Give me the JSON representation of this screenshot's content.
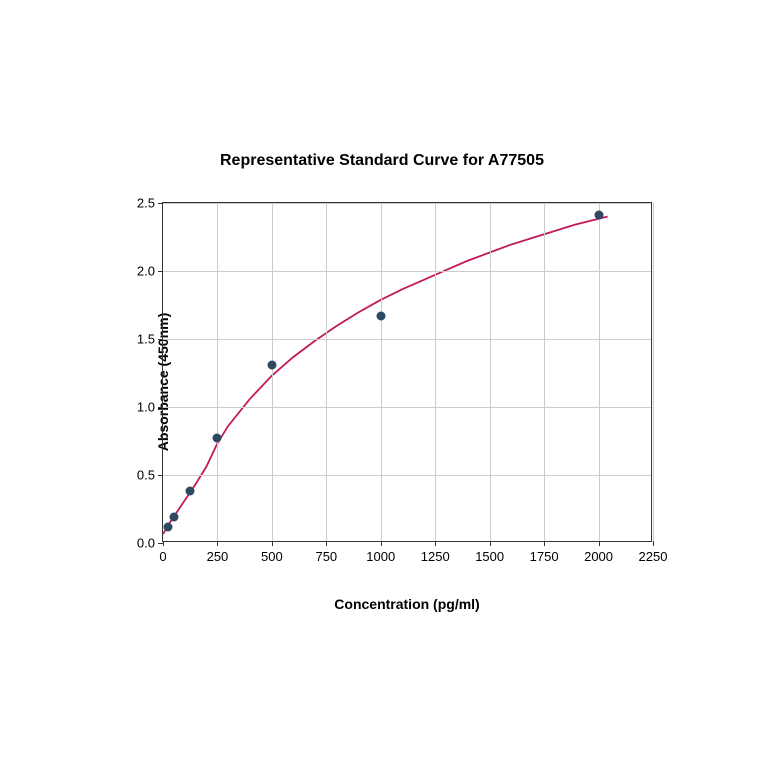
{
  "chart": {
    "type": "scatter-with-curve",
    "title": "Representative Standard Curve for A77505",
    "title_fontsize": 16,
    "title_fontweight": "bold",
    "xlabel": "Concentration (pg/ml)",
    "ylabel": "Absorbance (450nm)",
    "label_fontsize": 14,
    "label_fontweight": "bold",
    "tick_fontsize": 13,
    "xlim": [
      0,
      2250
    ],
    "ylim": [
      0.0,
      2.5
    ],
    "xticks": [
      0,
      250,
      500,
      750,
      1000,
      1250,
      1500,
      1750,
      2000,
      2250
    ],
    "yticks": [
      0.0,
      0.5,
      1.0,
      1.5,
      2.0,
      2.5
    ],
    "ytick_labels": [
      "0.0",
      "0.5",
      "1.0",
      "1.5",
      "2.0",
      "2.5"
    ],
    "background_color": "#ffffff",
    "grid_color": "#cccccc",
    "grid_on": true,
    "axis_color": "#333333",
    "tick_color": "#333333",
    "text_color": "#000000",
    "data_points": {
      "x": [
        25,
        50,
        125,
        250,
        500,
        1000,
        2000
      ],
      "y": [
        0.12,
        0.19,
        0.38,
        0.77,
        1.31,
        1.67,
        2.41
      ],
      "marker_color": "#2e4a62",
      "marker_size": 9,
      "marker_style": "circle"
    },
    "fit_curve": {
      "color": "#c2185b",
      "line_width": 1.8,
      "points": [
        [
          0,
          0.05
        ],
        [
          25,
          0.12
        ],
        [
          50,
          0.18
        ],
        [
          100,
          0.3
        ],
        [
          150,
          0.42
        ],
        [
          200,
          0.55
        ],
        [
          250,
          0.72
        ],
        [
          300,
          0.85
        ],
        [
          400,
          1.05
        ],
        [
          500,
          1.22
        ],
        [
          600,
          1.36
        ],
        [
          700,
          1.48
        ],
        [
          800,
          1.59
        ],
        [
          900,
          1.69
        ],
        [
          1000,
          1.78
        ],
        [
          1100,
          1.86
        ],
        [
          1200,
          1.93
        ],
        [
          1300,
          2.0
        ],
        [
          1400,
          2.07
        ],
        [
          1500,
          2.13
        ],
        [
          1600,
          2.19
        ],
        [
          1700,
          2.24
        ],
        [
          1800,
          2.29
        ],
        [
          1900,
          2.34
        ],
        [
          2000,
          2.38
        ],
        [
          2050,
          2.4
        ]
      ]
    }
  }
}
